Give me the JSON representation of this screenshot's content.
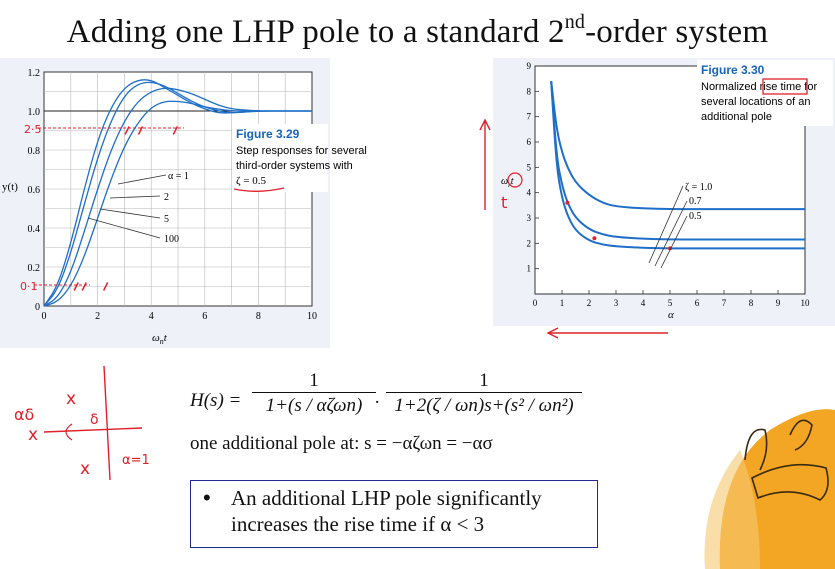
{
  "slide_title": "Adding one LHP pole to a standard 2",
  "slide_title_sup": "nd",
  "slide_title_rest": "-order system",
  "left_figure": {
    "caption_title": "Figure 3.29",
    "caption_lines": [
      "Step responses for several",
      "third-order systems with",
      "ζ = 0.5"
    ],
    "ylabel": "y(t)",
    "xlabel": "ω",
    "xlabel_sub": "n",
    "xlabel_tail": "t",
    "yticks": [
      "1.2",
      "1.0",
      "0.8",
      "0.6",
      "0.4",
      "0.2",
      "0"
    ],
    "xticks": [
      "0",
      "2",
      "4",
      "6",
      "8",
      "10"
    ],
    "labels": [
      "α = 1",
      "2",
      "5",
      "100"
    ],
    "handwritten_marks": [
      "2·5",
      "0·1"
    ]
  },
  "right_figure": {
    "caption_title": "Figure 3.30",
    "caption_lines": [
      "Normalized rise time for",
      "several locations of an",
      "additional pole"
    ],
    "yticks": [
      "9",
      "8",
      "7",
      "6",
      "5",
      "4",
      "3",
      "2",
      "1"
    ],
    "xticks": [
      "0",
      "1",
      "2",
      "3",
      "4",
      "5",
      "6",
      "7",
      "8",
      "9",
      "10"
    ],
    "xlabel": "α",
    "ylabel": "ω",
    "ylabel_tail": "t",
    "ylabel_sub": "r",
    "labels": [
      "ζ = 1.0",
      "0.7",
      "0.5"
    ],
    "handwritten_mark": "t"
  },
  "chart_data": [
    {
      "type": "line",
      "title": "Figure 3.29",
      "xlabel": "ωnt",
      "ylabel": "y(t)",
      "xlim": [
        0,
        10
      ],
      "ylim": [
        0,
        1.2
      ],
      "grid": true,
      "series": [
        {
          "name": "α = 1",
          "x": [
            0,
            0.5,
            1,
            1.5,
            2,
            2.5,
            3,
            3.5,
            4,
            4.5,
            5,
            5.5,
            6,
            6.5,
            7,
            8,
            9,
            10
          ],
          "y": [
            0,
            0.02,
            0.1,
            0.25,
            0.45,
            0.65,
            0.82,
            0.94,
            1.02,
            1.05,
            1.05,
            1.04,
            1.02,
            1.01,
            1.0,
            1.0,
            1.0,
            1.0
          ]
        },
        {
          "name": "2",
          "x": [
            0,
            0.5,
            1,
            1.5,
            2,
            2.5,
            3,
            3.5,
            4,
            4.5,
            5,
            5.5,
            6,
            6.5,
            7,
            8,
            9,
            10
          ],
          "y": [
            0,
            0.04,
            0.17,
            0.38,
            0.6,
            0.8,
            0.95,
            1.05,
            1.1,
            1.12,
            1.11,
            1.09,
            1.06,
            1.03,
            1.01,
            1.0,
            1.0,
            1.0
          ]
        },
        {
          "name": "5",
          "x": [
            0,
            0.5,
            1,
            1.5,
            2,
            2.5,
            3,
            3.5,
            4,
            4.5,
            5,
            5.5,
            6,
            6.5,
            7,
            8,
            9,
            10
          ],
          "y": [
            0,
            0.08,
            0.27,
            0.52,
            0.76,
            0.95,
            1.08,
            1.14,
            1.15,
            1.13,
            1.09,
            1.05,
            1.02,
            1.0,
            0.99,
            1.0,
            1.0,
            1.0
          ]
        },
        {
          "name": "100",
          "x": [
            0,
            0.5,
            1,
            1.5,
            2,
            2.5,
            3,
            3.5,
            4,
            4.5,
            5,
            5.5,
            6,
            6.5,
            7,
            8,
            9,
            10
          ],
          "y": [
            0,
            0.1,
            0.32,
            0.6,
            0.85,
            1.02,
            1.12,
            1.16,
            1.16,
            1.12,
            1.08,
            1.04,
            1.01,
            0.99,
            0.99,
            1.0,
            1.0,
            1.0
          ]
        }
      ]
    },
    {
      "type": "line",
      "title": "Figure 3.30",
      "xlabel": "α",
      "ylabel": "ωntr",
      "xlim": [
        0,
        10
      ],
      "ylim": [
        0,
        9
      ],
      "grid": false,
      "series": [
        {
          "name": "ζ = 1.0",
          "x": [
            0.6,
            0.8,
            1,
            1.2,
            1.5,
            2,
            2.5,
            3,
            4,
            5,
            6,
            7,
            8,
            9,
            10
          ],
          "y": [
            8.4,
            6.5,
            5.6,
            5.0,
            4.4,
            3.9,
            3.6,
            3.45,
            3.38,
            3.35,
            3.35,
            3.35,
            3.35,
            3.35,
            3.35
          ]
        },
        {
          "name": "0.7",
          "x": [
            0.6,
            0.8,
            1,
            1.2,
            1.5,
            2,
            2.5,
            3,
            4,
            5,
            6,
            7,
            8,
            9,
            10
          ],
          "y": [
            8.4,
            5.4,
            4.3,
            3.6,
            3.0,
            2.55,
            2.35,
            2.25,
            2.18,
            2.15,
            2.15,
            2.15,
            2.15,
            2.15,
            2.15
          ]
        },
        {
          "name": "0.5",
          "x": [
            0.6,
            0.8,
            1,
            1.2,
            1.5,
            2,
            2.5,
            3,
            4,
            5,
            6,
            7,
            8,
            9,
            10
          ],
          "y": [
            8.4,
            5.0,
            3.8,
            3.1,
            2.5,
            2.1,
            1.95,
            1.88,
            1.82,
            1.8,
            1.8,
            1.8,
            1.8,
            1.8,
            1.8
          ]
        }
      ]
    }
  ],
  "formula": {
    "lhs": "H(s) =",
    "frac1_num": "1",
    "frac1_den": "1+(s / αζωn)",
    "frac2_num": "1",
    "frac2_den": "1+2(ζ / ωn)s+(s² / ωn²)",
    "dot": "·"
  },
  "pole_text": "one additional pole at: s = −αζωn = −ασ",
  "bullet": {
    "symbol": "•",
    "line1": "An additional LHP pole significantly",
    "line2": "increases the rise time if α < 3"
  },
  "sketch_labels": [
    "αδ",
    "δ",
    "α=1"
  ],
  "colors": {
    "curve": "#1f6fc8",
    "caption_title": "#1664b8",
    "handwriting": "#e0202a",
    "bullet_border": "#1f2a8f",
    "figure_bg": "#e6ecf6",
    "highlight_orange": "#f0a020"
  }
}
